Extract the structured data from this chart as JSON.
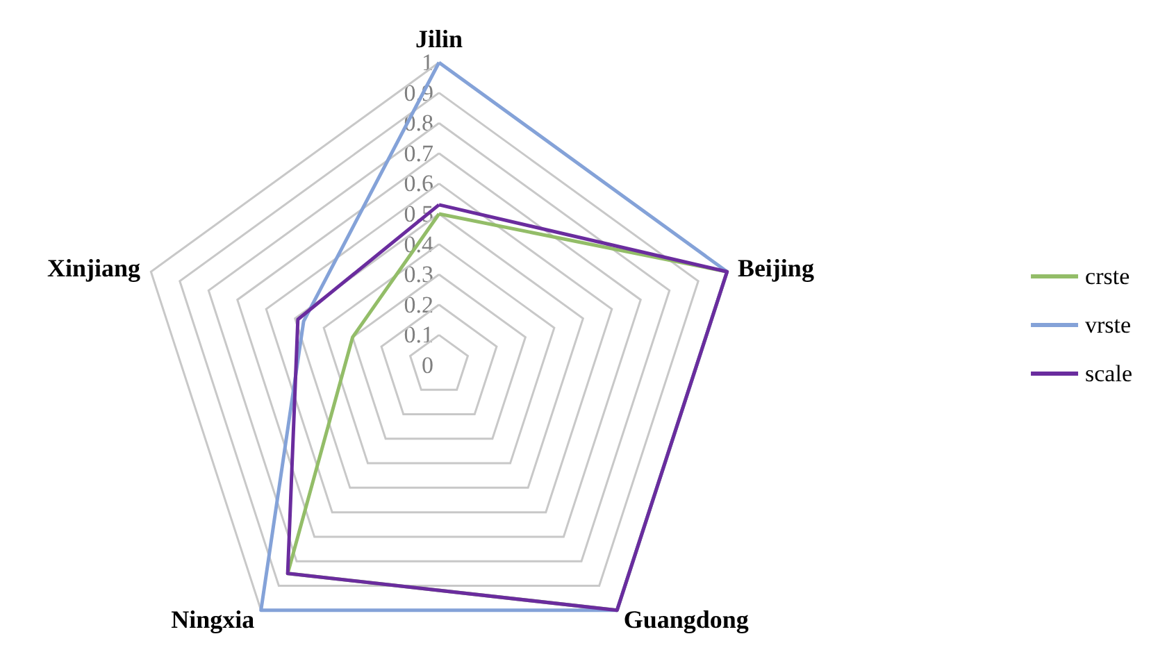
{
  "chart_data": {
    "type": "radar",
    "categories": [
      "Jilin",
      "Beijing",
      "Guangdong",
      "Ningxia",
      "Xinjiang"
    ],
    "series": [
      {
        "name": "crste",
        "color": "#93bd68",
        "values": [
          0.5,
          1,
          1,
          0.85,
          0.3
        ]
      },
      {
        "name": "vrste",
        "color": "#84a2d8",
        "values": [
          1,
          1,
          1,
          1,
          0.47
        ]
      },
      {
        "name": "scale",
        "color": "#6a2c9e",
        "values": [
          0.53,
          1,
          1,
          0.85,
          0.49
        ]
      }
    ],
    "ylim": [
      0,
      1
    ],
    "yticks": [
      0,
      0.1,
      0.2,
      0.3,
      0.4,
      0.5,
      0.6,
      0.7,
      0.8,
      0.9,
      1
    ],
    "legend": "right",
    "grid": true,
    "marker": "none"
  }
}
